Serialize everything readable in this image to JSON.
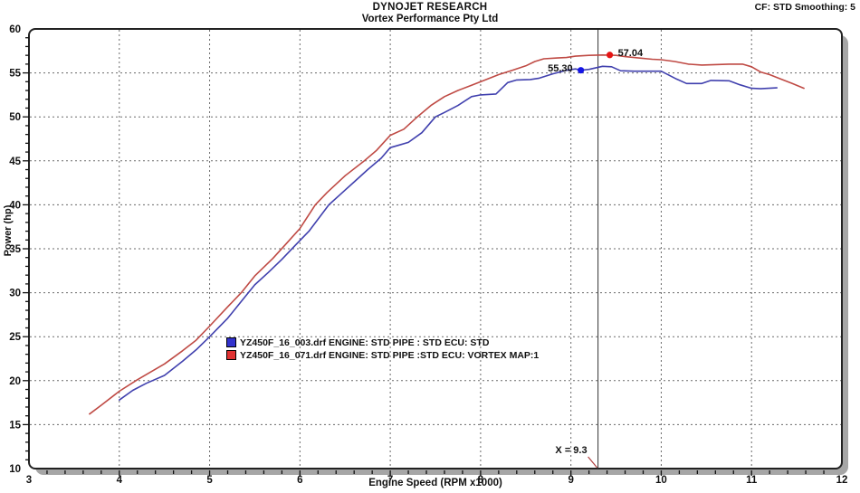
{
  "header": {
    "title": "DYNOJET RESEARCH",
    "subtitle": "Vortex Performance Pty Ltd",
    "settings": "CF: STD  Smoothing: 5"
  },
  "colors": {
    "frame": "#222222",
    "shadow": "#a6a6a6",
    "grid": "#6a6a6a",
    "cursor_line": "#333333",
    "cursor_pointer": "#b04040",
    "text": "#111111"
  },
  "chart_data": {
    "type": "line",
    "title": "DYNOJET RESEARCH",
    "subtitle": "Vortex Performance Pty Ltd",
    "xlabel": "Engine Speed (RPM x1000)",
    "ylabel": "Power (hp)",
    "xlim": [
      3,
      12
    ],
    "ylim": [
      10,
      60
    ],
    "x_major_ticks": [
      3,
      4,
      5,
      6,
      7,
      8,
      9,
      10,
      11,
      12
    ],
    "y_major_ticks": [
      10,
      15,
      20,
      25,
      30,
      35,
      40,
      45,
      50,
      55,
      60
    ],
    "x_minor_step": 0.2,
    "y_minor_step": 1,
    "grid": "dashed-major",
    "legend_position": "inside-center-left",
    "cursor": {
      "x": 9.3,
      "label": "X = 9.3"
    },
    "series": [
      {
        "name": "YZ450F_16_003.drf ENGINE: STD PIPE : STD ECU: STD",
        "color": "#4040ae",
        "swatch_color": "#3232cd",
        "marker": {
          "x": 9.11,
          "y": 55.3,
          "label": "55.30",
          "color": "#1414e6",
          "label_side": "left"
        },
        "points": [
          [
            4.0,
            17.8
          ],
          [
            4.15,
            18.9
          ],
          [
            4.3,
            19.7
          ],
          [
            4.5,
            20.6
          ],
          [
            4.7,
            22.2
          ],
          [
            4.85,
            23.5
          ],
          [
            5.0,
            25.0
          ],
          [
            5.2,
            27.1
          ],
          [
            5.35,
            29.0
          ],
          [
            5.5,
            30.9
          ],
          [
            5.65,
            32.3
          ],
          [
            5.8,
            33.8
          ],
          [
            5.95,
            35.4
          ],
          [
            6.1,
            37.0
          ],
          [
            6.32,
            40.0
          ],
          [
            6.45,
            41.2
          ],
          [
            6.6,
            42.6
          ],
          [
            6.75,
            44.0
          ],
          [
            6.9,
            45.3
          ],
          [
            7.0,
            46.5
          ],
          [
            7.1,
            46.8
          ],
          [
            7.2,
            47.1
          ],
          [
            7.35,
            48.2
          ],
          [
            7.5,
            50.0
          ],
          [
            7.6,
            50.5
          ],
          [
            7.75,
            51.3
          ],
          [
            7.9,
            52.3
          ],
          [
            8.0,
            52.5
          ],
          [
            8.17,
            52.6
          ],
          [
            8.3,
            53.9
          ],
          [
            8.4,
            54.2
          ],
          [
            8.55,
            54.25
          ],
          [
            8.65,
            54.4
          ],
          [
            8.8,
            54.9
          ],
          [
            8.95,
            55.3
          ],
          [
            9.05,
            55.45
          ],
          [
            9.11,
            55.3
          ],
          [
            9.2,
            55.4
          ],
          [
            9.35,
            55.75
          ],
          [
            9.45,
            55.7
          ],
          [
            9.55,
            55.25
          ],
          [
            9.7,
            55.2
          ],
          [
            9.85,
            55.2
          ],
          [
            10.0,
            55.2
          ],
          [
            10.17,
            54.3
          ],
          [
            10.28,
            53.8
          ],
          [
            10.45,
            53.8
          ],
          [
            10.55,
            54.15
          ],
          [
            10.75,
            54.1
          ],
          [
            10.87,
            53.65
          ],
          [
            11.0,
            53.25
          ],
          [
            11.1,
            53.2
          ],
          [
            11.28,
            53.3
          ]
        ]
      },
      {
        "name": "YZ450F_16_071.drf ENGINE: STD PIPE :STD ECU: VORTEX MAP:1",
        "color": "#bf4a44",
        "swatch_color": "#e03232",
        "marker": {
          "x": 9.43,
          "y": 57.04,
          "label": "57.04",
          "color": "#e61414",
          "label_side": "right"
        },
        "points": [
          [
            3.67,
            16.2
          ],
          [
            3.8,
            17.2
          ],
          [
            4.0,
            18.8
          ],
          [
            4.2,
            20.1
          ],
          [
            4.35,
            21.0
          ],
          [
            4.5,
            21.9
          ],
          [
            4.7,
            23.4
          ],
          [
            4.85,
            24.6
          ],
          [
            5.0,
            26.2
          ],
          [
            5.2,
            28.4
          ],
          [
            5.35,
            30.0
          ],
          [
            5.5,
            31.9
          ],
          [
            5.7,
            33.9
          ],
          [
            5.85,
            35.6
          ],
          [
            6.0,
            37.3
          ],
          [
            6.17,
            40.0
          ],
          [
            6.3,
            41.4
          ],
          [
            6.5,
            43.3
          ],
          [
            6.7,
            44.9
          ],
          [
            6.85,
            46.2
          ],
          [
            7.0,
            47.9
          ],
          [
            7.15,
            48.6
          ],
          [
            7.3,
            50.0
          ],
          [
            7.45,
            51.3
          ],
          [
            7.6,
            52.3
          ],
          [
            7.75,
            53.0
          ],
          [
            7.9,
            53.6
          ],
          [
            8.05,
            54.2
          ],
          [
            8.2,
            54.8
          ],
          [
            8.35,
            55.3
          ],
          [
            8.5,
            55.8
          ],
          [
            8.6,
            56.3
          ],
          [
            8.7,
            56.6
          ],
          [
            8.85,
            56.7
          ],
          [
            8.95,
            56.75
          ],
          [
            9.05,
            56.9
          ],
          [
            9.2,
            57.0
          ],
          [
            9.35,
            57.04
          ],
          [
            9.5,
            57.0
          ],
          [
            9.6,
            56.85
          ],
          [
            9.75,
            56.7
          ],
          [
            9.9,
            56.55
          ],
          [
            10.0,
            56.5
          ],
          [
            10.15,
            56.3
          ],
          [
            10.3,
            56.0
          ],
          [
            10.45,
            55.9
          ],
          [
            10.6,
            55.95
          ],
          [
            10.75,
            56.0
          ],
          [
            10.9,
            56.0
          ],
          [
            11.0,
            55.7
          ],
          [
            11.1,
            55.1
          ],
          [
            11.2,
            54.8
          ],
          [
            11.35,
            54.2
          ],
          [
            11.45,
            53.8
          ],
          [
            11.58,
            53.25
          ]
        ]
      }
    ]
  }
}
